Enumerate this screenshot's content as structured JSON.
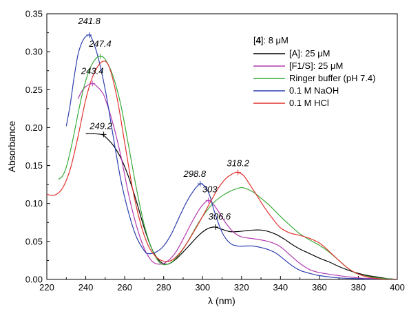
{
  "chart_data": {
    "type": "line",
    "title": "",
    "xlabel": "λ (nm)",
    "ylabel": "Absorbance",
    "xlim": [
      220,
      400
    ],
    "ylim": [
      0.0,
      0.35
    ],
    "x_ticks": [
      220,
      240,
      260,
      280,
      300,
      320,
      340,
      360,
      380,
      400
    ],
    "x_tick_labels": [
      "220",
      "240",
      "260",
      "280",
      "300",
      "320",
      "340",
      "360",
      "380",
      "400"
    ],
    "y_ticks": [
      0.0,
      0.05,
      0.1,
      0.15,
      0.2,
      0.25,
      0.3,
      0.35
    ],
    "y_tick_labels": [
      "0.00",
      "0.05",
      "0.10",
      "0.15",
      "0.20",
      "0.25",
      "0.30",
      "0.35"
    ],
    "grid": false,
    "legend": {
      "placement": "top-right",
      "title_bold": "4",
      "title_rest": ": 8 μM"
    },
    "series": [
      {
        "name": "[A]: 25 μM",
        "color": "#000000",
        "x": [
          240,
          244,
          248,
          250,
          254,
          258,
          262,
          266,
          270,
          274,
          278,
          282,
          286,
          290,
          294,
          298,
          302,
          306,
          310,
          314,
          318,
          322,
          326,
          330,
          334,
          338,
          342,
          346,
          350,
          355,
          360,
          365,
          370,
          375,
          380,
          385,
          390,
          395,
          400
        ],
        "y": [
          0.192,
          0.192,
          0.191,
          0.188,
          0.177,
          0.16,
          0.135,
          0.103,
          0.068,
          0.04,
          0.024,
          0.02,
          0.026,
          0.036,
          0.047,
          0.058,
          0.066,
          0.069,
          0.066,
          0.063,
          0.063,
          0.064,
          0.065,
          0.065,
          0.063,
          0.059,
          0.053,
          0.046,
          0.04,
          0.034,
          0.028,
          0.023,
          0.017,
          0.012,
          0.008,
          0.005,
          0.003,
          0.001,
          0.0
        ]
      },
      {
        "name": "[F1/S]: 25 μM",
        "color": "#b23aaf",
        "x": [
          236,
          238,
          240,
          242,
          243.4,
          245,
          248,
          250,
          254,
          258,
          262,
          266,
          270,
          274,
          278,
          282,
          286,
          290,
          294,
          298,
          300,
          302,
          303,
          305,
          308,
          312,
          316,
          320,
          325,
          330,
          335,
          340,
          345,
          350,
          355,
          360,
          370,
          380,
          390,
          400
        ],
        "y": [
          0.238,
          0.248,
          0.254,
          0.257,
          0.258,
          0.256,
          0.248,
          0.238,
          0.205,
          0.163,
          0.112,
          0.071,
          0.041,
          0.024,
          0.02,
          0.024,
          0.035,
          0.053,
          0.073,
          0.091,
          0.098,
          0.103,
          0.104,
          0.101,
          0.09,
          0.074,
          0.062,
          0.056,
          0.054,
          0.052,
          0.049,
          0.043,
          0.032,
          0.021,
          0.013,
          0.009,
          0.005,
          0.002,
          0.001,
          0.0
        ]
      },
      {
        "name": "Ringer buffer (pH 7.4)",
        "color": "#3aab3a",
        "x": [
          226,
          228,
          230,
          232,
          234,
          236,
          238,
          240,
          242,
          244,
          246,
          247.4,
          250,
          254,
          258,
          262,
          266,
          270,
          274,
          278,
          282,
          286,
          290,
          294,
          298,
          302,
          306,
          310,
          314,
          318,
          320,
          322,
          326,
          330,
          335,
          340,
          345,
          350,
          355,
          360,
          365,
          370,
          375,
          380,
          390,
          400
        ],
        "y": [
          0.132,
          0.136,
          0.148,
          0.168,
          0.192,
          0.218,
          0.242,
          0.262,
          0.277,
          0.287,
          0.293,
          0.294,
          0.29,
          0.268,
          0.23,
          0.176,
          0.12,
          0.072,
          0.04,
          0.022,
          0.02,
          0.027,
          0.04,
          0.057,
          0.075,
          0.09,
          0.102,
          0.11,
          0.116,
          0.12,
          0.121,
          0.12,
          0.115,
          0.107,
          0.096,
          0.083,
          0.071,
          0.06,
          0.052,
          0.045,
          0.036,
          0.025,
          0.014,
          0.007,
          0.002,
          0.0
        ]
      },
      {
        "name": "0.1 M NaOH",
        "color": "#2e3fae",
        "x": [
          230,
          232,
          234,
          236,
          238,
          240,
          241.8,
          243,
          246,
          250,
          254,
          258,
          262,
          266,
          270,
          272,
          276,
          280,
          284,
          288,
          292,
          296,
          298.8,
          300,
          302,
          304,
          306,
          310,
          314,
          318,
          322,
          326,
          330,
          334,
          338,
          342,
          346,
          350,
          355,
          360,
          370,
          380,
          390,
          400
        ],
        "y": [
          0.202,
          0.23,
          0.266,
          0.296,
          0.312,
          0.32,
          0.322,
          0.318,
          0.296,
          0.25,
          0.19,
          0.131,
          0.088,
          0.056,
          0.038,
          0.034,
          0.036,
          0.044,
          0.06,
          0.082,
          0.103,
          0.119,
          0.126,
          0.125,
          0.12,
          0.108,
          0.09,
          0.062,
          0.048,
          0.044,
          0.044,
          0.044,
          0.042,
          0.039,
          0.034,
          0.026,
          0.018,
          0.012,
          0.008,
          0.005,
          0.002,
          0.001,
          0.0,
          0.0
        ]
      },
      {
        "name": "0.1 M HCl",
        "color": "#e0312c",
        "x": [
          220,
          224,
          228,
          232,
          236,
          240,
          244,
          248.5,
          252,
          256,
          260,
          264,
          268,
          272,
          276,
          280,
          284,
          288,
          292,
          296,
          300,
          304,
          308,
          312,
          316,
          318.2,
          321,
          324,
          328,
          332,
          336,
          340,
          345,
          350,
          355,
          360,
          365,
          370,
          375,
          380,
          385,
          390,
          395,
          400
        ],
        "y": [
          0.112,
          0.111,
          0.12,
          0.145,
          0.188,
          0.237,
          0.27,
          0.287,
          0.28,
          0.24,
          0.18,
          0.12,
          0.075,
          0.045,
          0.03,
          0.024,
          0.025,
          0.034,
          0.048,
          0.065,
          0.083,
          0.102,
          0.12,
          0.133,
          0.14,
          0.141,
          0.137,
          0.126,
          0.11,
          0.094,
          0.08,
          0.068,
          0.061,
          0.058,
          0.054,
          0.048,
          0.037,
          0.025,
          0.014,
          0.007,
          0.003,
          0.001,
          0.0,
          0.0
        ]
      }
    ],
    "annotations": [
      {
        "text": "241.8",
        "x": 241.8,
        "y": 0.322,
        "series": 3
      },
      {
        "text": "247.4",
        "x": 247.4,
        "y": 0.294,
        "series": 2
      },
      {
        "text": "243.4",
        "x": 243.4,
        "y": 0.258,
        "series": 1
      },
      {
        "text": "249.2",
        "x": 249.2,
        "y": 0.191,
        "series": 0
      },
      {
        "text": "298.8",
        "x": 298.8,
        "y": 0.126,
        "series": 3
      },
      {
        "text": "318.2",
        "x": 318.2,
        "y": 0.141,
        "series": 4
      },
      {
        "text": "303",
        "x": 303,
        "y": 0.104,
        "series": 1
      },
      {
        "text": "306.6",
        "x": 306.6,
        "y": 0.069,
        "series": 0
      }
    ]
  }
}
